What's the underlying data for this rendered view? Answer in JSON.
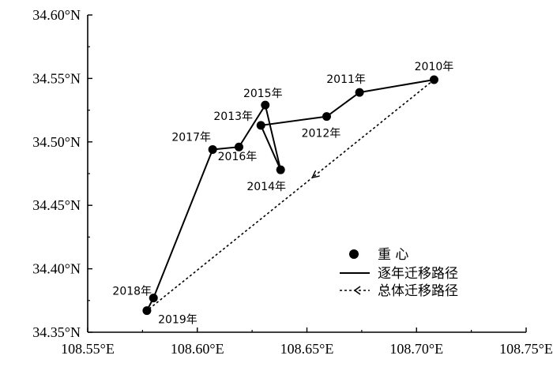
{
  "chart_data": {
    "type": "scatter",
    "title": "",
    "xlabel": "",
    "ylabel": "",
    "xlim": [
      108.55,
      108.75
    ],
    "ylim": [
      34.35,
      34.6
    ],
    "x_ticks": [
      "108.55°E",
      "108.60°E",
      "108.65°E",
      "108.70°E",
      "108.75°E"
    ],
    "y_ticks": [
      "34.35°N",
      "34.40°N",
      "34.45°N",
      "34.50°N",
      "34.55°N",
      "34.60°N"
    ],
    "grid": false,
    "legend_position": "bottom-right",
    "points": [
      {
        "label": "2010年",
        "lon": 108.708,
        "lat": 34.549
      },
      {
        "label": "2011年",
        "lon": 108.674,
        "lat": 34.539
      },
      {
        "label": "2012年",
        "lon": 108.659,
        "lat": 34.52
      },
      {
        "label": "2013年",
        "lon": 108.629,
        "lat": 34.513
      },
      {
        "label": "2014年",
        "lon": 108.638,
        "lat": 34.478
      },
      {
        "label": "2015年",
        "lon": 108.631,
        "lat": 34.529
      },
      {
        "label": "2016年",
        "lon": 108.619,
        "lat": 34.496
      },
      {
        "label": "2017年",
        "lon": 108.607,
        "lat": 34.494
      },
      {
        "label": "2018年",
        "lon": 108.58,
        "lat": 34.377
      },
      {
        "label": "2019年",
        "lon": 108.577,
        "lat": 34.367
      }
    ],
    "legend": [
      {
        "label": "重  心",
        "marker": "dot"
      },
      {
        "label": "逐年迁移路径",
        "marker": "solid-line"
      },
      {
        "label": "总体迁移路径",
        "marker": "dashed-arrow"
      }
    ]
  }
}
